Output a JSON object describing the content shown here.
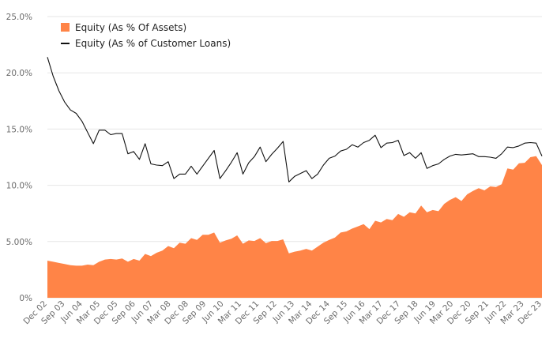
{
  "chart_data": {
    "type": "area",
    "x_ticks": [
      "Dec 02",
      "Sep 03",
      "Jun 04",
      "Mar 05",
      "Dec 05",
      "Sep 06",
      "Jun 07",
      "Mar 08",
      "Dec 08",
      "Sep 09",
      "Jun 10",
      "Mar 11",
      "Dec 11",
      "Sep 12",
      "Jun 13",
      "Mar 14",
      "Dec 14",
      "Sep 15",
      "Jun 16",
      "Mar 17",
      "Dec 17",
      "Sep 18",
      "Jun 19",
      "Mar 20",
      "Dec 20",
      "Sep 21",
      "Jun 22",
      "Mar 23",
      "Dec 23"
    ],
    "y_ticks": [
      "0%",
      "5.00%",
      "10.0%",
      "15.0%",
      "20.0%",
      "25.0%"
    ],
    "ylim": [
      0,
      25
    ],
    "grid": true,
    "legend_position": "top-left",
    "colors": {
      "area": "#ff8447",
      "line": "#111111"
    },
    "series": [
      {
        "name": "Equity (As % Of Assets)",
        "kind": "area",
        "values": [
          3.3,
          3.2,
          3.1,
          3.0,
          2.9,
          2.85,
          2.85,
          2.95,
          2.9,
          3.2,
          3.4,
          3.45,
          3.4,
          3.5,
          3.2,
          3.45,
          3.3,
          3.9,
          3.7,
          4.0,
          4.2,
          4.6,
          4.4,
          4.9,
          4.8,
          5.3,
          5.15,
          5.6,
          5.6,
          5.8,
          4.9,
          5.1,
          5.25,
          5.55,
          4.8,
          5.1,
          5.05,
          5.3,
          4.85,
          5.05,
          5.05,
          5.2,
          3.95,
          4.1,
          4.2,
          4.35,
          4.2,
          4.55,
          4.9,
          5.15,
          5.35,
          5.8,
          5.9,
          6.15,
          6.35,
          6.55,
          6.1,
          6.85,
          6.7,
          7.0,
          6.9,
          7.45,
          7.2,
          7.6,
          7.5,
          8.2,
          7.6,
          7.8,
          7.7,
          8.35,
          8.7,
          8.95,
          8.6,
          9.2,
          9.5,
          9.75,
          9.55,
          9.9,
          9.85,
          10.1,
          11.5,
          11.4,
          11.95,
          12.0,
          12.5,
          12.6,
          11.8
        ]
      },
      {
        "name": "Equity (As % of Customer Loans)",
        "kind": "line",
        "values": [
          21.4,
          19.7,
          18.4,
          17.4,
          16.7,
          16.4,
          15.7,
          14.7,
          13.7,
          14.9,
          14.9,
          14.5,
          14.6,
          14.6,
          12.8,
          13.0,
          12.3,
          13.7,
          11.9,
          11.8,
          11.75,
          12.1,
          10.6,
          11.0,
          11.0,
          11.7,
          11.0,
          11.7,
          12.4,
          13.1,
          10.6,
          11.3,
          12.05,
          12.9,
          11.0,
          12.0,
          12.55,
          13.4,
          12.1,
          12.75,
          13.3,
          13.9,
          10.3,
          10.8,
          11.05,
          11.3,
          10.6,
          11.0,
          11.8,
          12.4,
          12.6,
          13.05,
          13.2,
          13.6,
          13.4,
          13.8,
          14.0,
          14.45,
          13.35,
          13.75,
          13.8,
          14.0,
          12.65,
          12.9,
          12.4,
          12.9,
          11.5,
          11.75,
          11.9,
          12.3,
          12.6,
          12.75,
          12.7,
          12.75,
          12.8,
          12.55,
          12.55,
          12.5,
          12.4,
          12.8,
          13.4,
          13.35,
          13.5,
          13.75,
          13.8,
          13.75,
          12.6
        ]
      }
    ]
  }
}
